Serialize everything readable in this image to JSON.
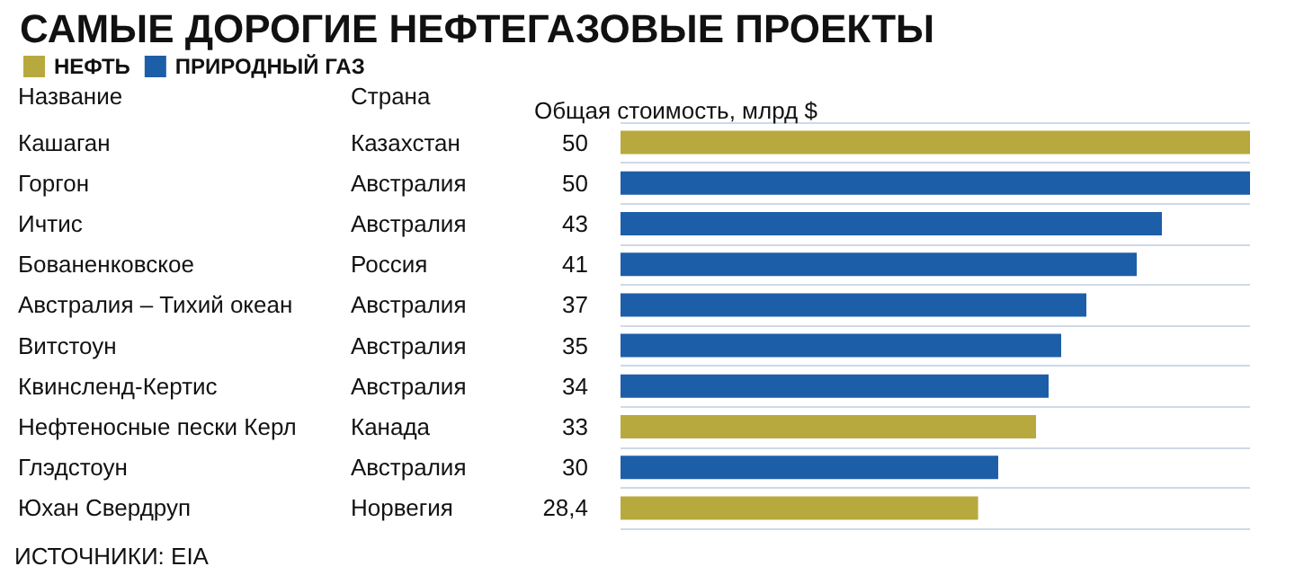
{
  "chart_data": {
    "type": "bar",
    "orientation": "horizontal",
    "stacked": true,
    "title": "САМЫЕ ДОРОГИЕ НЕФТЕГАЗОВЫЕ ПРОЕКТЫ",
    "legend": "top left",
    "ylabel": "Название",
    "y2label": "Страна",
    "xlabel": "Общая стоимость, млрд $",
    "categories": [
      "Кашаган",
      "Горгон",
      "Ичтис",
      "Бованенковское",
      "Австралия – Тихий океан",
      "Витстоун",
      "Квинсленд-Кертис",
      "Нефтеносные пески Керл",
      "Глэдстоун",
      "Юхан Свердруп"
    ],
    "y2_categories": [
      "Казахстан",
      "Австралия",
      "Австралия",
      "Россия",
      "Австралия",
      "Австралия",
      "Австралия",
      "Канада",
      "Австралия",
      "Норвегия"
    ],
    "series": [
      {
        "name": "НЕФТЬ",
        "color": "#b8a93e",
        "values": [
          50,
          null,
          null,
          null,
          null,
          null,
          null,
          33,
          null,
          28.4
        ],
        "value_labels": [
          "50",
          null,
          null,
          null,
          null,
          null,
          null,
          "33",
          null,
          "28,4"
        ]
      },
      {
        "name": "ПРИРОДНЫЙ ГАЗ",
        "color": "#1d5ea8",
        "values": [
          null,
          50,
          43,
          41,
          37,
          35,
          34,
          null,
          30,
          null
        ],
        "value_labels": [
          null,
          "50",
          "43",
          "41",
          "37",
          "35",
          "34",
          null,
          "30",
          null
        ]
      }
    ],
    "annotations": [
      "ИСТОЧНИКИ: EIA"
    ]
  }
}
